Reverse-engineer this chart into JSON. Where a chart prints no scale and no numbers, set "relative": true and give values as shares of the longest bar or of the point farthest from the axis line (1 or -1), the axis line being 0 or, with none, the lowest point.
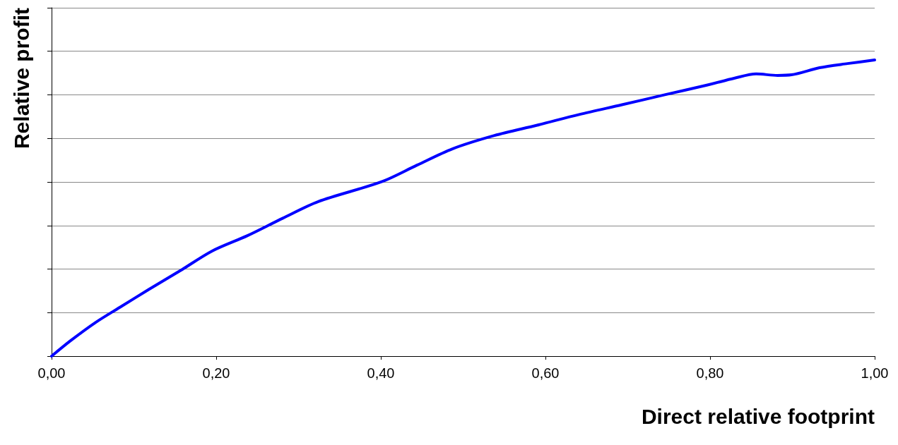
{
  "chart_data": {
    "type": "line",
    "xlabel": "Direct relative footprint",
    "ylabel": "Relative profit",
    "relative": true,
    "grid": "y",
    "marker": "none",
    "line_style": "solid",
    "xlim": [
      0,
      1
    ],
    "xticks": [
      {
        "value": 0,
        "label": "0,00"
      },
      {
        "value": 0.2,
        "label": "0,20"
      },
      {
        "value": 0.4,
        "label": "0,40"
      },
      {
        "value": 0.6,
        "label": "0,60"
      },
      {
        "value": 0.8,
        "label": "0,80"
      },
      {
        "value": 1,
        "label": "1,00"
      }
    ],
    "series": [
      {
        "color": "#0000ff",
        "x": [
          0,
          0.023,
          0.053,
          0.083,
          0.118,
          0.156,
          0.195,
          0.238,
          0.281,
          0.324,
          0.401,
          0.444,
          0.487,
          0.538,
          0.59,
          0.641,
          0.693,
          0.744,
          0.796,
          0.83,
          0.856,
          0.882,
          0.899,
          0.933,
          0.967,
          1
        ],
        "values": [
          0,
          0.052,
          0.113,
          0.165,
          0.225,
          0.288,
          0.355,
          0.407,
          0.466,
          0.522,
          0.589,
          0.645,
          0.7,
          0.745,
          0.78,
          0.816,
          0.849,
          0.882,
          0.915,
          0.939,
          0.953,
          0.948,
          0.95,
          0.974,
          0.988,
          1
        ]
      }
    ]
  }
}
